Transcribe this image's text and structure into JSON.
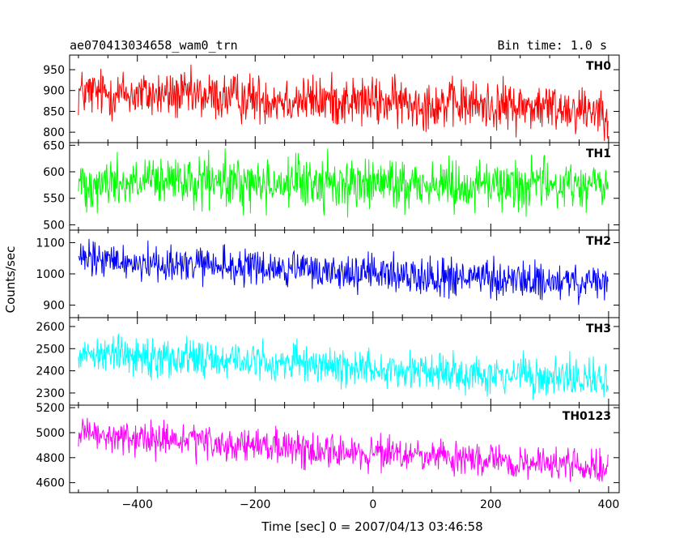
{
  "header": {
    "title": "ae070413034658_wam0_trn",
    "bin_time": "Bin time: 1.0 s"
  },
  "chart_data": {
    "type": "line",
    "xlabel": "Time [sec] 0 = 2007/04/13 03:46:58",
    "ylabel": "Counts/sec",
    "xlim": [
      -515,
      418
    ],
    "x_start": -500,
    "x_end": 399,
    "x_step": 1,
    "xticks": [
      -400,
      -200,
      0,
      200,
      400
    ],
    "xtick_labels": [
      "−400",
      "−200",
      "0",
      "200",
      "400"
    ],
    "series": [
      {
        "name": "TH0",
        "color": "#ff0000",
        "ylim": [
          775,
          985
        ],
        "yticks": [
          800,
          850,
          900,
          950
        ],
        "trend_start": 895,
        "trend_end": 855,
        "noise_amplitude": 42
      },
      {
        "name": "TH1",
        "color": "#00ff00",
        "ylim": [
          490,
          655
        ],
        "yticks": [
          500,
          550,
          600,
          650
        ],
        "trend_start": 580,
        "trend_end": 575,
        "noise_amplitude": 34
      },
      {
        "name": "TH2",
        "color": "#0000ff",
        "ylim": [
          860,
          1140
        ],
        "yticks": [
          900,
          1000,
          1100
        ],
        "trend_start": 1045,
        "trend_end": 965,
        "noise_amplitude": 42
      },
      {
        "name": "TH3",
        "color": "#00ffff",
        "ylim": [
          2245,
          2640
        ],
        "yticks": [
          2300,
          2400,
          2500,
          2600
        ],
        "trend_start": 2485,
        "trend_end": 2355,
        "noise_amplitude": 62
      },
      {
        "name": "TH0123",
        "color": "#ff00ff",
        "ylim": [
          4520,
          5220
        ],
        "yticks": [
          4600,
          4800,
          5000,
          5200
        ],
        "trend_start": 4980,
        "trend_end": 4715,
        "noise_amplitude": 95
      }
    ]
  }
}
